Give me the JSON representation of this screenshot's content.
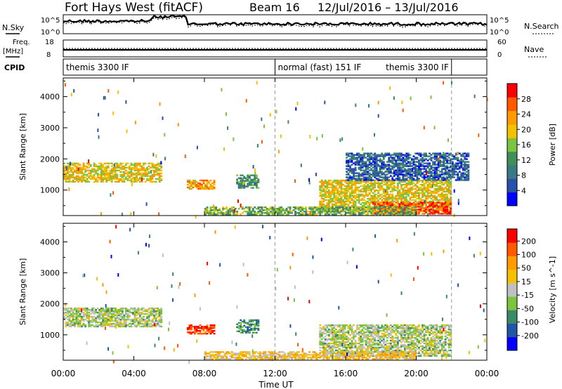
{
  "header": {
    "title": "Fort Hays West (fitACF)",
    "beam": "Beam 16",
    "date_range": "12/Jul/2016 – 13/Jul/2016"
  },
  "status_panels": {
    "nsky_label": "N.Sky",
    "nsearch_label": "N.Search",
    "noise_ticks_left": [
      "10^5",
      "10^0"
    ],
    "noise_ticks_right": [
      "10^5",
      "10^0"
    ],
    "freq_label_line1": "Freq.",
    "freq_label_line2": "[MHz]",
    "freq_ticks": [
      "18",
      "8"
    ],
    "nave_label": "Nave",
    "nave_ticks": [
      "60",
      "0"
    ],
    "cpid_label": "CPID",
    "cpid_segments": [
      {
        "start_h": 0,
        "end_h": 12,
        "text": "themis 3300 IF",
        "align": "left"
      },
      {
        "start_h": 12,
        "end_h": 22,
        "text": "normal (fast) 151 IF",
        "align": "left"
      },
      {
        "start_h": 12,
        "end_h": 22,
        "text": "themis 3300 IF",
        "align": "right"
      }
    ]
  },
  "x_axis": {
    "label": "Time UT",
    "range_h": [
      0,
      24
    ],
    "ticks": [
      {
        "h": 0,
        "label": "00:00"
      },
      {
        "h": 4,
        "label": "04:00"
      },
      {
        "h": 8,
        "label": "08:00"
      },
      {
        "h": 12,
        "label": "12:00"
      },
      {
        "h": 16,
        "label": "16:00"
      },
      {
        "h": 20,
        "label": "20:00"
      },
      {
        "h": 24,
        "label": "00:00"
      }
    ]
  },
  "chart_data": [
    {
      "type": "heatmap",
      "name": "power",
      "ylabel": "Slant Range [km]",
      "ylim": [
        180,
        4600
      ],
      "yticks": [
        1000,
        2000,
        3000,
        4000
      ],
      "xlim": [
        0,
        24
      ],
      "colorbar": {
        "label": "Power [dB]",
        "range": [
          0,
          32
        ],
        "ticks": [
          "4",
          "8",
          "12",
          "16",
          "20",
          "24",
          "28"
        ],
        "colors": [
          "#0000ff",
          "#2a4fa8",
          "#3a7a84",
          "#3f8f58",
          "#7cc440",
          "#f2c200",
          "#ff9a00",
          "#ff5a00",
          "#ff0000"
        ]
      },
      "vertical_markers_h": [
        12,
        22
      ],
      "echo_regions": [
        {
          "t": [
            0.0,
            5.5
          ],
          "r": [
            1250,
            1850
          ],
          "level": 0.62
        },
        {
          "t": [
            7.0,
            8.5
          ],
          "r": [
            1020,
            1320
          ],
          "level": 0.72
        },
        {
          "t": [
            9.8,
            11.0
          ],
          "r": [
            1050,
            1500
          ],
          "level": 0.35
        },
        {
          "t": [
            14.5,
            22.0
          ],
          "r": [
            300,
            1300
          ],
          "level": 0.62
        },
        {
          "t": [
            17.5,
            22.0
          ],
          "r": [
            220,
            600
          ],
          "level": 0.92
        },
        {
          "t": [
            8.0,
            20.0
          ],
          "r": [
            200,
            450
          ],
          "level": 0.45
        },
        {
          "t": [
            16.0,
            23.0
          ],
          "r": [
            1300,
            2200
          ],
          "level": 0.18
        }
      ]
    },
    {
      "type": "heatmap",
      "name": "velocity",
      "ylabel": "Slant Range [km]",
      "ylim": [
        180,
        4600
      ],
      "yticks": [
        1000,
        2000,
        3000,
        4000
      ],
      "xlim": [
        0,
        24
      ],
      "colorbar": {
        "label": "Velocity [m s^-1]",
        "range": [
          -250,
          250
        ],
        "ticks": [
          "200",
          "100",
          "50",
          "15",
          "-15",
          "-50",
          "-100",
          "-200"
        ],
        "colors": [
          "#0000ff",
          "#2255a8",
          "#3a8a6a",
          "#7cc440",
          "#c0c0c0",
          "#f5c000",
          "#ff9a00",
          "#ff5a00",
          "#ff0000"
        ]
      },
      "vertical_markers_h": [
        12,
        22
      ],
      "echo_regions": [
        {
          "t": [
            0.0,
            5.5
          ],
          "r": [
            1250,
            1850
          ],
          "level": 0.45
        },
        {
          "t": [
            7.0,
            8.5
          ],
          "r": [
            1020,
            1320
          ],
          "level": 0.92
        },
        {
          "t": [
            9.8,
            11.0
          ],
          "r": [
            1050,
            1500
          ],
          "level": 0.25
        },
        {
          "t": [
            14.5,
            22.0
          ],
          "r": [
            300,
            1300
          ],
          "level": 0.45
        },
        {
          "t": [
            8.0,
            20.0
          ],
          "r": [
            200,
            450
          ],
          "level": 0.62
        }
      ]
    }
  ]
}
